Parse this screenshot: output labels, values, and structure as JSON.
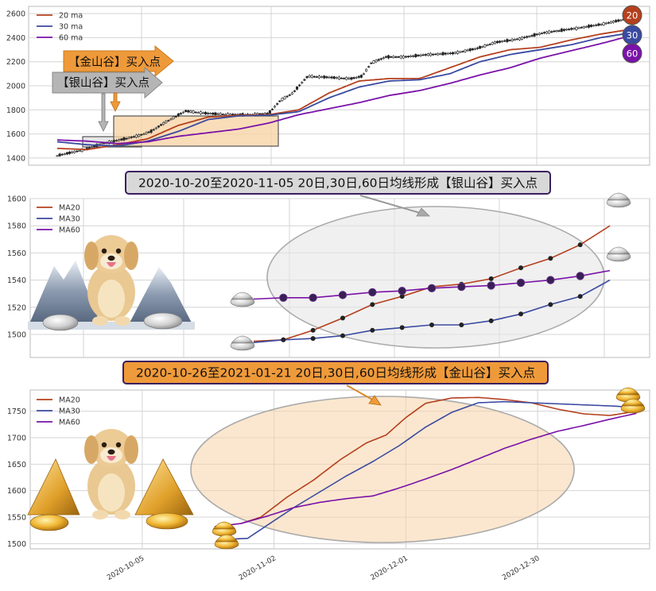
{
  "colors": {
    "ma20": "#b5401e",
    "ma30": "#3a4aa0",
    "ma60": "#7a12a8",
    "silver_arrow": "#b5b5b5",
    "gold_arrow": "#ef9a3a",
    "silver_box": "#e0e0e0",
    "gold_box": "#f7d4a8",
    "grid": "#d4d4d4"
  },
  "labels": {
    "gold_callout": "【金山谷】买入点",
    "silver_callout": "【银山谷】买入点",
    "banner_silver": "2020-10-20至2020-11-05 20日,30日,60日均线形成【银山谷】买入点",
    "banner_gold": "2020-10-26至2021-01-21 20日,30日,60日均线形成【金山谷】买入点",
    "badge_20": "20",
    "badge_30": "30",
    "badge_60": "60"
  },
  "chart_data": [
    {
      "type": "line",
      "subtype": "candlestick-with-moving-averages",
      "legend": [
        "20 ma",
        "30 ma",
        "60 ma"
      ],
      "legend_position": "top-left",
      "ylim": [
        1340,
        2660
      ],
      "y_ticks": [
        1400,
        1600,
        1800,
        2000,
        2200,
        2400,
        2600
      ],
      "grid": true,
      "x_count": 230,
      "price_knots": [
        [
          0,
          1420
        ],
        [
          18,
          1470
        ],
        [
          30,
          1520
        ],
        [
          45,
          1560
        ],
        [
          55,
          1590
        ],
        [
          62,
          1620
        ],
        [
          72,
          1700
        ],
        [
          85,
          1790
        ],
        [
          100,
          1770
        ],
        [
          115,
          1760
        ],
        [
          128,
          1760
        ],
        [
          140,
          1770
        ],
        [
          148,
          1880
        ],
        [
          156,
          1940
        ],
        [
          166,
          2080
        ],
        [
          180,
          2070
        ],
        [
          195,
          2060
        ],
        [
          202,
          2080
        ],
        [
          208,
          2190
        ],
        [
          218,
          2240
        ],
        [
          230,
          2240
        ],
        [
          246,
          2260
        ],
        [
          262,
          2270
        ],
        [
          278,
          2310
        ],
        [
          290,
          2360
        ],
        [
          306,
          2390
        ],
        [
          322,
          2440
        ],
        [
          345,
          2480
        ],
        [
          360,
          2510
        ],
        [
          375,
          2550
        ]
      ],
      "ma20_knots": [
        [
          0,
          1480
        ],
        [
          20,
          1470
        ],
        [
          40,
          1510
        ],
        [
          60,
          1560
        ],
        [
          80,
          1670
        ],
        [
          100,
          1740
        ],
        [
          120,
          1755
        ],
        [
          140,
          1760
        ],
        [
          160,
          1800
        ],
        [
          180,
          1940
        ],
        [
          200,
          2040
        ],
        [
          220,
          2060
        ],
        [
          240,
          2060
        ],
        [
          260,
          2150
        ],
        [
          280,
          2240
        ],
        [
          300,
          2300
        ],
        [
          320,
          2320
        ],
        [
          340,
          2380
        ],
        [
          360,
          2430
        ],
        [
          375,
          2460
        ]
      ],
      "ma30_knots": [
        [
          0,
          1535
        ],
        [
          20,
          1510
        ],
        [
          40,
          1500
        ],
        [
          60,
          1540
        ],
        [
          80,
          1620
        ],
        [
          100,
          1720
        ],
        [
          120,
          1750
        ],
        [
          140,
          1755
        ],
        [
          160,
          1785
        ],
        [
          180,
          1900
        ],
        [
          200,
          1990
        ],
        [
          220,
          2040
        ],
        [
          240,
          2050
        ],
        [
          260,
          2100
        ],
        [
          280,
          2200
        ],
        [
          300,
          2260
        ],
        [
          320,
          2300
        ],
        [
          340,
          2340
        ],
        [
          360,
          2400
        ],
        [
          375,
          2430
        ]
      ],
      "ma60_knots": [
        [
          0,
          1550
        ],
        [
          20,
          1540
        ],
        [
          40,
          1520
        ],
        [
          60,
          1535
        ],
        [
          80,
          1580
        ],
        [
          100,
          1610
        ],
        [
          120,
          1640
        ],
        [
          140,
          1690
        ],
        [
          160,
          1760
        ],
        [
          180,
          1810
        ],
        [
          200,
          1860
        ],
        [
          220,
          1920
        ],
        [
          240,
          1960
        ],
        [
          260,
          2020
        ],
        [
          280,
          2090
        ],
        [
          300,
          2150
        ],
        [
          320,
          2230
        ],
        [
          340,
          2290
        ],
        [
          360,
          2350
        ],
        [
          375,
          2400
        ]
      ]
    },
    {
      "type": "line",
      "title": "2020-10-20至2020-11-05 20日,30日,60日均线形成【银山谷】买入点",
      "legend": [
        "MA20",
        "MA30",
        "MA60"
      ],
      "legend_position": "top-left",
      "ylim": [
        1483,
        1600
      ],
      "y_ticks": [
        1500,
        1520,
        1540,
        1560,
        1580,
        1600
      ],
      "grid": true,
      "x_count": 13,
      "series": [
        {
          "name": "MA20",
          "values": [
            1495,
            1496,
            1503,
            1512,
            1522,
            1528,
            1535,
            1537,
            1541,
            1549,
            1556,
            1566,
            1580
          ]
        },
        {
          "name": "MA30",
          "values": [
            1494,
            1496,
            1497,
            1499,
            1503,
            1505,
            1507,
            1507,
            1510,
            1515,
            1522,
            1528,
            1540
          ]
        },
        {
          "name": "MA60",
          "values": [
            1526,
            1527,
            1527,
            1529,
            1531,
            1532,
            1534,
            1535,
            1536,
            1538,
            1540,
            1543,
            1547
          ]
        }
      ]
    },
    {
      "type": "line",
      "title": "2020-10-26至2021-01-21 20日,30日,60日均线形成【金山谷】买入点",
      "legend": [
        "MA20",
        "MA30",
        "MA60"
      ],
      "legend_position": "top-left",
      "ylim": [
        1490,
        1790
      ],
      "y_ticks": [
        1500,
        1550,
        1600,
        1650,
        1700,
        1750
      ],
      "grid": true,
      "x_tick_labels": [
        "2020-10-05",
        "2020-11-02",
        "2020-12-01",
        "2020-12-30"
      ],
      "x_tick_positions": [
        3,
        23,
        43,
        63
      ],
      "x_range": [
        -14,
        80
      ],
      "ma20_knots": [
        [
          14,
          1532
        ],
        [
          18,
          1538
        ],
        [
          21,
          1550
        ],
        [
          25,
          1588
        ],
        [
          29,
          1620
        ],
        [
          33,
          1658
        ],
        [
          37,
          1690
        ],
        [
          40,
          1705
        ],
        [
          43,
          1738
        ],
        [
          46,
          1765
        ],
        [
          50,
          1775
        ],
        [
          54,
          1776
        ],
        [
          58,
          1772
        ],
        [
          62,
          1766
        ],
        [
          66,
          1754
        ],
        [
          70,
          1745
        ],
        [
          74,
          1742
        ],
        [
          77,
          1748
        ],
        [
          78,
          1757
        ]
      ],
      "ma30_knots": [
        [
          14,
          1532
        ],
        [
          16,
          1508
        ],
        [
          19,
          1510
        ],
        [
          22,
          1535
        ],
        [
          26,
          1568
        ],
        [
          30,
          1598
        ],
        [
          34,
          1628
        ],
        [
          38,
          1655
        ],
        [
          42,
          1685
        ],
        [
          46,
          1720
        ],
        [
          50,
          1748
        ],
        [
          54,
          1766
        ],
        [
          58,
          1768
        ],
        [
          62,
          1766
        ],
        [
          66,
          1764
        ],
        [
          70,
          1762
        ],
        [
          74,
          1760
        ],
        [
          77,
          1758
        ],
        [
          78,
          1756
        ]
      ],
      "ma60_knots": [
        [
          14,
          1532
        ],
        [
          18,
          1538
        ],
        [
          22,
          1552
        ],
        [
          26,
          1568
        ],
        [
          30,
          1578
        ],
        [
          34,
          1585
        ],
        [
          38,
          1590
        ],
        [
          42,
          1605
        ],
        [
          46,
          1622
        ],
        [
          50,
          1640
        ],
        [
          54,
          1660
        ],
        [
          58,
          1680
        ],
        [
          62,
          1697
        ],
        [
          66,
          1712
        ],
        [
          70,
          1723
        ],
        [
          74,
          1735
        ],
        [
          78,
          1746
        ]
      ]
    }
  ]
}
